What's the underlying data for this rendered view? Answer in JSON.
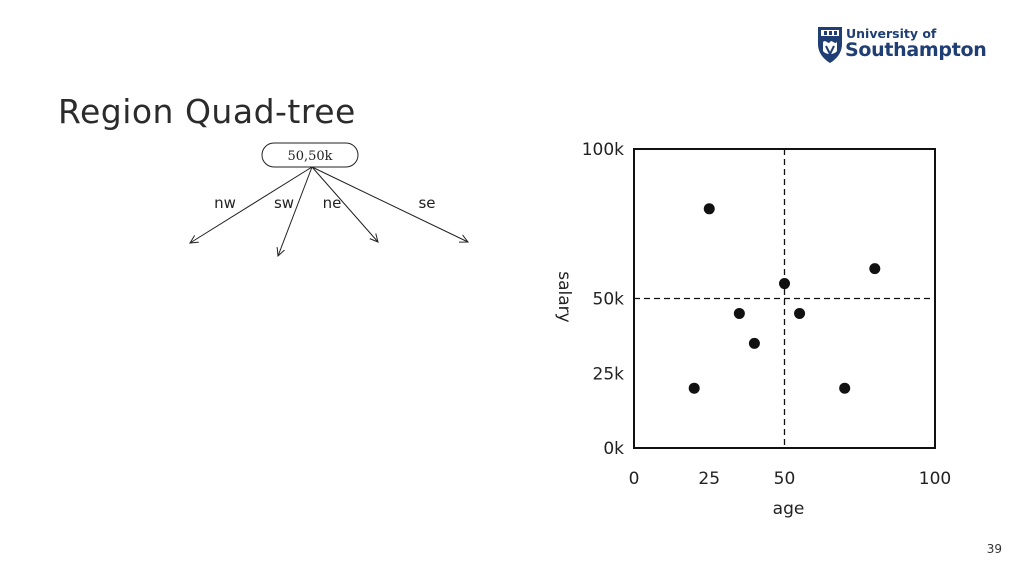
{
  "slide": {
    "title": "Region Quad-tree",
    "page_number": "39"
  },
  "logo": {
    "line1": "University of",
    "line2": "Southampton",
    "color": "#1f3e73"
  },
  "tree": {
    "root_label": "50,50k",
    "branches": [
      "nw",
      "sw",
      "ne",
      "se"
    ]
  },
  "chart_data": {
    "type": "scatter",
    "xlabel": "age",
    "ylabel": "salary",
    "xlim": [
      0,
      100
    ],
    "ylim": [
      0,
      100000
    ],
    "x_ticks": [
      {
        "value": 0,
        "label": "0"
      },
      {
        "value": 25,
        "label": "25"
      },
      {
        "value": 50,
        "label": "50"
      },
      {
        "value": 100,
        "label": "100"
      }
    ],
    "y_ticks": [
      {
        "value": 0,
        "label": "0k"
      },
      {
        "value": 25000,
        "label": "25k"
      },
      {
        "value": 50000,
        "label": "50k"
      },
      {
        "value": 100000,
        "label": "100k"
      }
    ],
    "split_lines": {
      "x": 50,
      "y": 50000
    },
    "points": [
      {
        "x": 25,
        "y": 80000
      },
      {
        "x": 20,
        "y": 20000
      },
      {
        "x": 35,
        "y": 45000
      },
      {
        "x": 40,
        "y": 35000
      },
      {
        "x": 50,
        "y": 55000
      },
      {
        "x": 55,
        "y": 45000
      },
      {
        "x": 70,
        "y": 20000
      },
      {
        "x": 80,
        "y": 60000
      }
    ]
  }
}
